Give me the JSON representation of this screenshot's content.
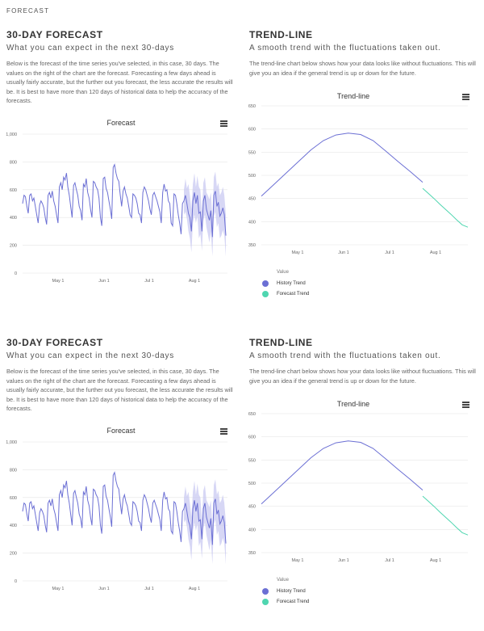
{
  "header": {
    "label": "FORECAST"
  },
  "forecast_section": {
    "title": "30-DAY FORECAST",
    "subtitle": "What you can expect in the next 30-days",
    "description": "Below is the forecast of the time series you've selected, in this case, 30 days. The values on the right of the chart are the forecast. Forecasting a few days ahead is usually fairly accurate, but the further out you forecast, the less accurate the results will be. It is best to have more than 120 days of historical data to help the accuracy of the forecasts."
  },
  "trend_section": {
    "title": "TREND-LINE",
    "subtitle": "A smooth trend with the fluctuations taken out.",
    "description": "The trend-line chart below shows how your data looks like without fluctuations. This will give you an idea if the general trend is up or down for the future."
  },
  "colors": {
    "history": "#6b6fd4",
    "forecast": "#4fd6b0",
    "band": "#c9c9f2",
    "grid": "#e6e6e6"
  },
  "icons": {
    "menu": "hamburger-menu-icon"
  },
  "chart_data": [
    {
      "type": "line",
      "title": "Forecast",
      "ylim": [
        0,
        1000
      ],
      "yticks": [
        "0",
        "200",
        "400",
        "600",
        "800",
        "1,000"
      ],
      "xticks": [
        "May 1",
        "Jun 1",
        "Jul 1",
        "Aug 1"
      ],
      "series": [
        {
          "values": [
            500,
            560,
            550,
            480,
            430,
            560,
            570,
            520,
            540,
            480,
            420,
            360,
            490,
            520,
            500,
            470,
            400,
            350,
            560,
            580,
            540,
            590,
            520,
            480,
            420,
            360,
            620,
            650,
            600,
            690,
            670,
            720,
            620,
            560,
            480,
            400,
            630,
            650,
            600,
            560,
            480,
            450,
            380,
            640,
            620,
            680,
            580,
            540,
            460,
            400,
            660,
            650,
            620,
            600,
            540,
            400,
            340,
            680,
            690,
            610,
            580,
            520,
            460,
            390,
            760,
            780,
            720,
            680,
            660,
            560,
            480,
            590,
            620,
            570,
            540,
            480,
            420,
            400,
            570,
            560,
            540,
            500,
            430,
            420,
            360,
            580,
            620,
            600,
            560,
            520,
            460,
            420,
            560,
            580,
            550,
            520,
            480,
            440,
            360,
            580,
            640,
            590,
            600,
            520,
            500,
            360,
            340,
            570,
            560,
            500,
            420,
            360,
            280,
            500,
            520
          ]
        },
        {
          "values": [
            520,
            560,
            500,
            430,
            400,
            300,
            520,
            580,
            500,
            560,
            430,
            440,
            300,
            520,
            560,
            460,
            420,
            380,
            450,
            260,
            560,
            590,
            480,
            510,
            410,
            430,
            470,
            420,
            270
          ]
        }
      ],
      "band_upper": [
        600,
        680,
        610,
        640,
        560,
        460,
        640,
        720,
        620,
        700,
        620,
        600,
        440,
        650,
        690,
        580,
        560,
        530,
        580,
        400,
        690,
        730,
        620,
        650,
        560,
        580,
        620,
        560,
        420
      ],
      "band_lower": [
        420,
        440,
        390,
        300,
        250,
        150,
        360,
        420,
        360,
        410,
        250,
        280,
        160,
        380,
        420,
        330,
        280,
        220,
        300,
        120,
        410,
        440,
        330,
        360,
        250,
        270,
        310,
        270,
        120
      ]
    },
    {
      "type": "line",
      "title": "Trend-line",
      "ylim": [
        350,
        650
      ],
      "yticks": [
        "350",
        "400",
        "450",
        "500",
        "550",
        "600",
        "650"
      ],
      "xticks": [
        "May 1",
        "Jun 1",
        "Jul 1",
        "Aug 1"
      ],
      "legend": {
        "title": "Value",
        "items": [
          "History Trend",
          "Forecast Trend"
        ]
      },
      "series": [
        {
          "name": "History Trend",
          "values": [
            455,
            480,
            505,
            530,
            555,
            575,
            587,
            591,
            588,
            575,
            553,
            530,
            508,
            485
          ]
        },
        {
          "name": "Forecast Trend",
          "values": [
            472,
            461,
            450,
            438,
            427,
            416,
            404,
            393,
            388
          ]
        }
      ]
    }
  ]
}
